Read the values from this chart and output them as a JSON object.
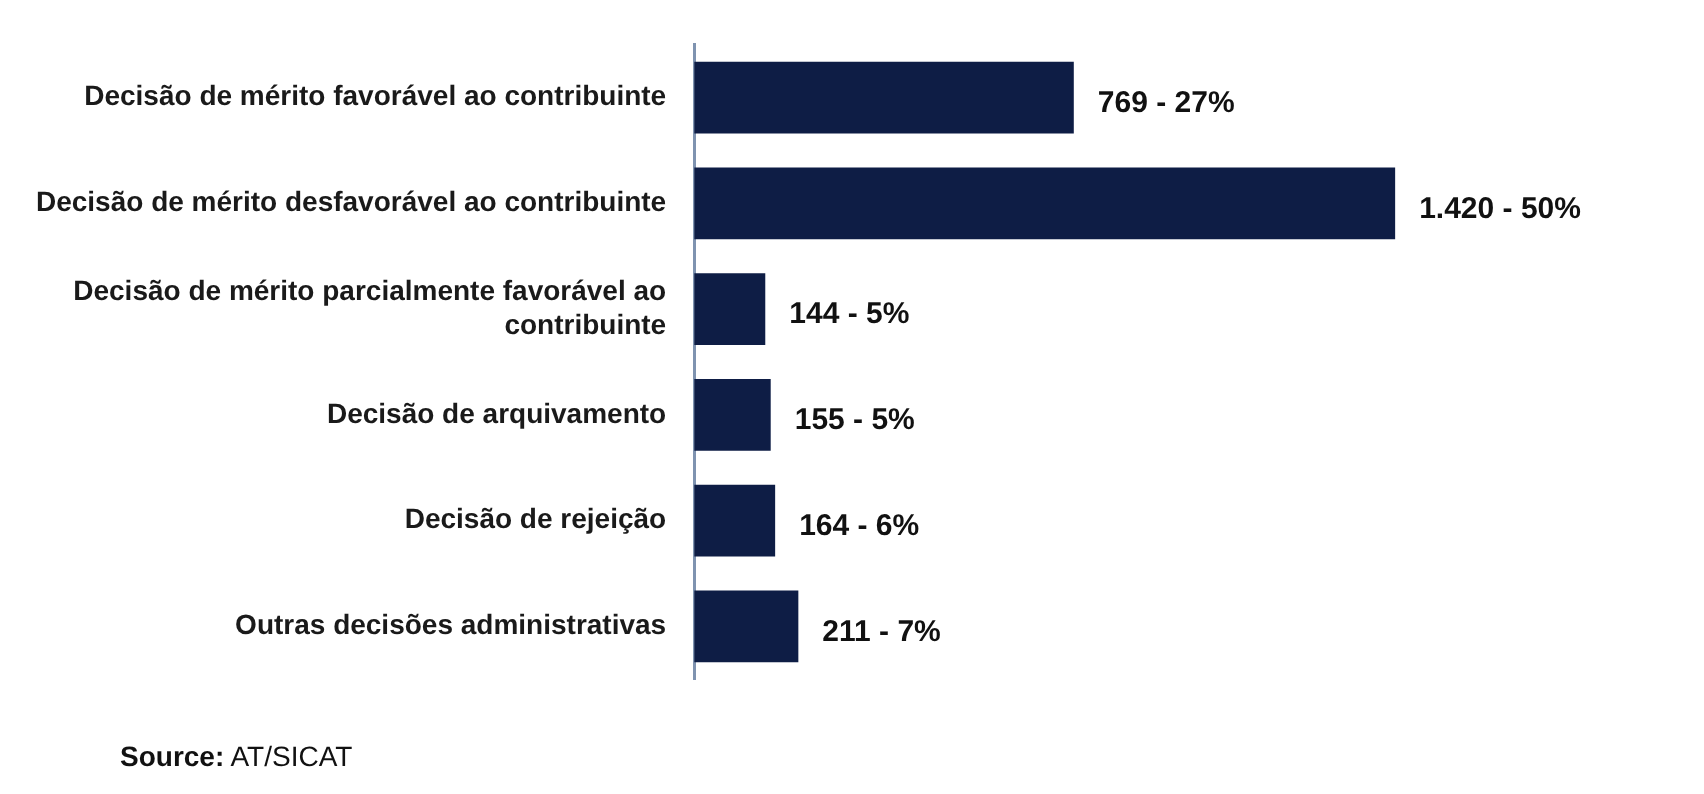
{
  "chart_data": {
    "type": "bar",
    "orientation": "horizontal",
    "categories": [
      "Decisão de mérito favorável ao contribuinte",
      "Decisão de mérito desfavorável ao contribuinte",
      "Decisão de mérito parcialmente favorável ao contribuinte",
      "Decisão de arquivamento",
      "Decisão de rejeição",
      "Outras decisões administrativas"
    ],
    "values": [
      769,
      1420,
      144,
      155,
      164,
      211
    ],
    "value_labels": [
      "769 - 27%",
      "1.420 - 50%",
      "144 - 5%",
      "155 - 5%",
      "164 - 6%",
      "211 - 7%"
    ],
    "color": "#0e1d45",
    "legend": false,
    "annotations": [
      "Source: AT/SICAT"
    ]
  }
}
